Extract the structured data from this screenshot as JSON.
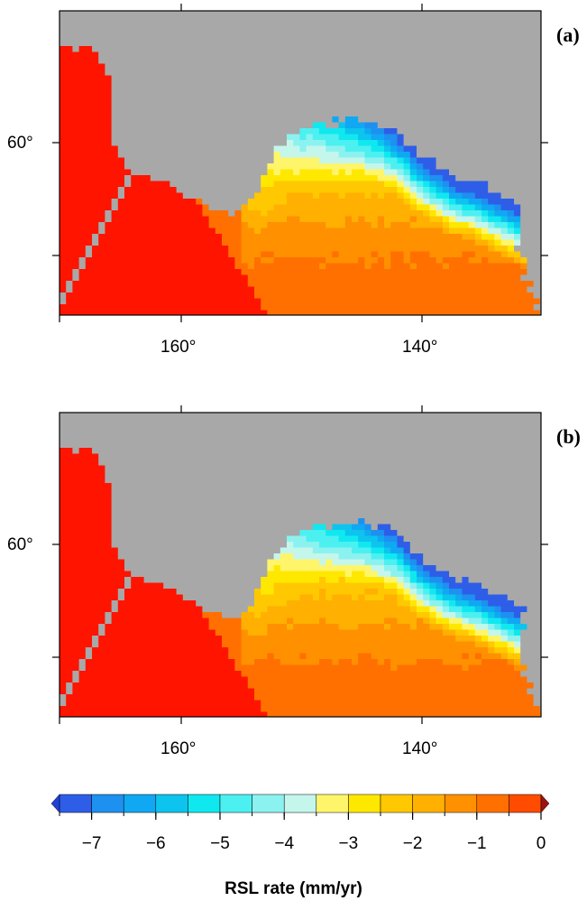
{
  "chart_data": [
    {
      "type": "heatmap",
      "panel_label": "(a)",
      "lat_tick_labels": [
        "60°"
      ],
      "lon_tick_labels": [
        "160°",
        "140°"
      ],
      "land_color": "#a8a8a8"
    },
    {
      "type": "heatmap",
      "panel_label": "(b)",
      "lat_tick_labels": [
        "60°"
      ],
      "lon_tick_labels": [
        "160°",
        "140°"
      ],
      "land_color": "#a8a8a8"
    }
  ],
  "colorbar": {
    "title": "RSL rate (mm/yr)",
    "range": [
      -7.5,
      0
    ],
    "tick_values": [
      -7,
      -6,
      -5,
      -4,
      -3,
      -2,
      -1,
      0
    ],
    "tick_labels": [
      "−7",
      "−6",
      "−5",
      "−4",
      "−3",
      "−2",
      "−1",
      "0"
    ],
    "bins": [
      {
        "from": -7.5,
        "to": -7.0,
        "color": "#2e5ee8"
      },
      {
        "from": -7.0,
        "to": -6.5,
        "color": "#1e90f0"
      },
      {
        "from": -6.5,
        "to": -6.0,
        "color": "#10a8f2"
      },
      {
        "from": -6.0,
        "to": -5.5,
        "color": "#0cc4ee"
      },
      {
        "from": -5.5,
        "to": -5.0,
        "color": "#10e8f0"
      },
      {
        "from": -5.0,
        "to": -4.5,
        "color": "#4cf0f0"
      },
      {
        "from": -4.5,
        "to": -4.0,
        "color": "#8cf2f0"
      },
      {
        "from": -4.0,
        "to": -3.5,
        "color": "#c4f6ec"
      },
      {
        "from": -3.5,
        "to": -3.0,
        "color": "#fff56a"
      },
      {
        "from": -3.0,
        "to": -2.5,
        "color": "#ffe800"
      },
      {
        "from": -2.5,
        "to": -2.0,
        "color": "#ffc800"
      },
      {
        "from": -2.0,
        "to": -1.5,
        "color": "#ffb000"
      },
      {
        "from": -1.5,
        "to": -1.0,
        "color": "#ff9000"
      },
      {
        "from": -1.0,
        "to": -0.5,
        "color": "#ff7000"
      },
      {
        "from": -0.5,
        "to": 0.0,
        "color": "#ff4c00"
      },
      {
        "from": 0.0,
        "to": 0.5,
        "color": "#ff1400"
      }
    ],
    "underflow_color": "#2040d8",
    "overflow_color": "#a01010"
  }
}
